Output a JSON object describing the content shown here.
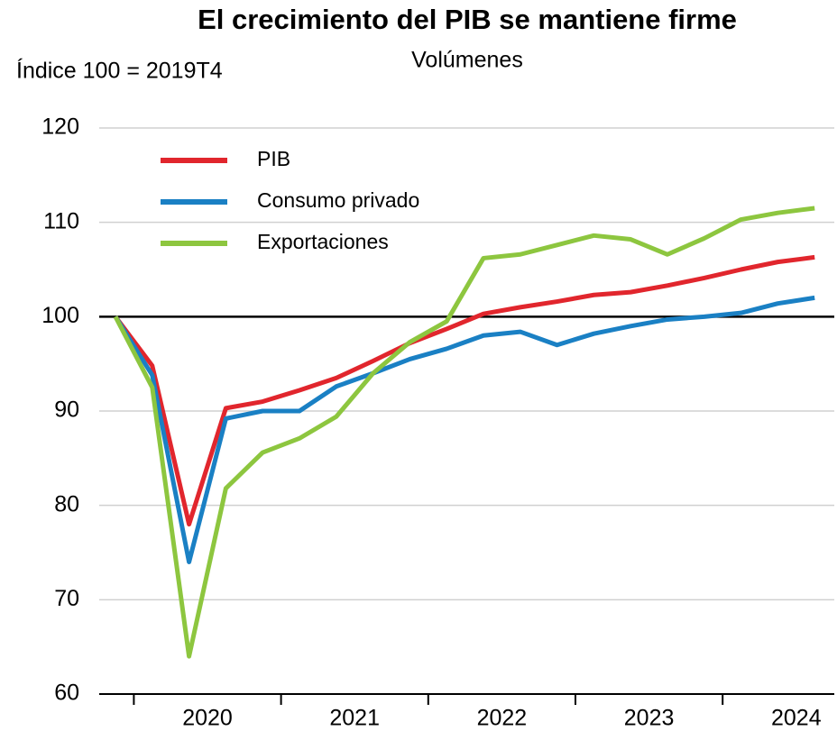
{
  "chart_data": {
    "type": "line",
    "title": "El crecimiento del PIB se mantiene firme",
    "subtitle": "Volúmenes",
    "y_label": "Índice 100 = 2019T4",
    "x_labels": [
      "2020",
      "2021",
      "2022",
      "2023",
      "2024"
    ],
    "ylim": [
      60,
      120
    ],
    "yticks": [
      60,
      70,
      80,
      90,
      100,
      110,
      120
    ],
    "grid": true,
    "reference_line": 100,
    "legend": "top-left",
    "series": [
      {
        "name": "PIB",
        "color": "#e1262d",
        "values": [
          100,
          94.8,
          78,
          90.3,
          91,
          92.2,
          93.5,
          95.3,
          97.2,
          98.7,
          100.3,
          101,
          101.6,
          102.3,
          102.6,
          103.3,
          104.1,
          105,
          105.8,
          106.3
        ]
      },
      {
        "name": "Consumo privado",
        "color": "#1a80c4",
        "values": [
          100,
          93.8,
          74,
          89.2,
          90,
          90,
          92.6,
          94,
          95.5,
          96.6,
          98,
          98.4,
          97,
          98.2,
          99,
          99.7,
          100,
          100.4,
          101.4,
          102
        ]
      },
      {
        "name": "Exportaciones",
        "color": "#8dc63f",
        "values": [
          100,
          92.5,
          64,
          81.8,
          85.6,
          87.1,
          89.4,
          94,
          97.3,
          99.5,
          106.2,
          106.6,
          107.6,
          108.6,
          108.2,
          106.6,
          108.3,
          110.3,
          111,
          111.5
        ]
      }
    ]
  }
}
